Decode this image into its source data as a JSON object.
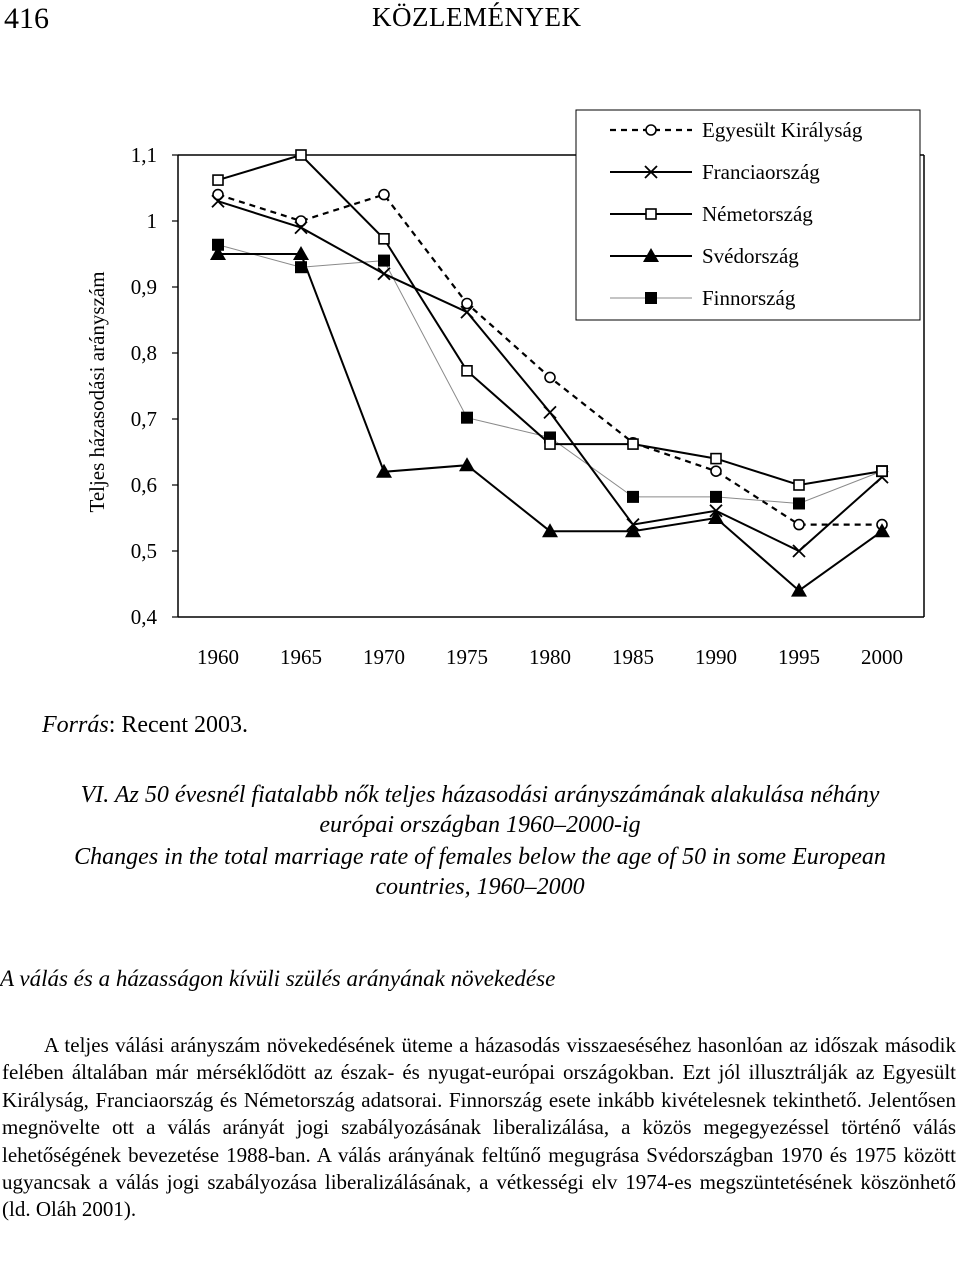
{
  "header": {
    "page_number": "416",
    "running_head": "KÖZLEMÉNYEK"
  },
  "chart_data": {
    "type": "line",
    "ylabel": "Teljes házasodási arányszám",
    "xlabel": "",
    "x": [
      1960,
      1965,
      1970,
      1975,
      1980,
      1985,
      1990,
      1995,
      2000
    ],
    "xtick_labels": [
      "1960",
      "1965",
      "1970",
      "1975",
      "1980",
      "1985",
      "1990",
      "1995",
      "2000"
    ],
    "ylim": [
      0.4,
      1.1
    ],
    "yticks": [
      0.4,
      0.5,
      0.6,
      0.7,
      0.8,
      0.9,
      1.0,
      1.1
    ],
    "ytick_labels": [
      "0,4",
      "0,5",
      "0,6",
      "0,7",
      "0,8",
      "0,9",
      "1",
      "1,1"
    ],
    "grid": false,
    "legend_position": "top-right",
    "series": [
      {
        "name": "Egyesült Királyság",
        "marker": "circle-open",
        "line": "dashed",
        "values": [
          1.04,
          1.0,
          1.04,
          0.875,
          0.763,
          0.664,
          0.621,
          0.54,
          0.54
        ]
      },
      {
        "name": "Franciaország",
        "marker": "x",
        "line": "solid",
        "values": [
          1.03,
          0.99,
          0.92,
          0.862,
          0.71,
          0.54,
          0.561,
          0.5,
          0.612
        ]
      },
      {
        "name": "Németország",
        "marker": "square-open",
        "line": "solid",
        "values": [
          1.062,
          1.1,
          0.973,
          0.773,
          0.662,
          0.662,
          0.64,
          0.6,
          0.621
        ]
      },
      {
        "name": "Svédország",
        "marker": "triangle-filled",
        "line": "solid",
        "values": [
          0.95,
          0.95,
          0.62,
          0.63,
          0.53,
          0.53,
          0.55,
          0.44,
          0.53
        ]
      },
      {
        "name": "Finnország",
        "marker": "square-filled",
        "line": "thin",
        "values": [
          0.964,
          0.93,
          0.94,
          0.702,
          0.672,
          0.582,
          0.582,
          0.572,
          0.621
        ]
      }
    ],
    "colors": {
      "lines": "#000000",
      "thin_line": "#8a8a8a"
    }
  },
  "source": {
    "label": "Forrás",
    "text": ": Recent 2003."
  },
  "caption": {
    "line1": "VI. Az 50 évesnél fiatalabb nők teljes házasodási arányszámának alakulása néhány",
    "line2": "európai országban 1960–2000-ig",
    "line3": "Changes in the total marriage rate of females below the age of 50 in some European",
    "line4": "countries, 1960–2000"
  },
  "section_heading": "A válás és a házasságon kívüli szülés arányának növekedése",
  "body": {
    "paragraph": "A teljes válási arányszám növekedésének üteme a házasodás visszaeséséhez hasonlóan az időszak második felében általában már mérséklődött az észak- és nyugat-európai országokban. Ezt jól illusztrálják az Egyesült Királyság, Franciaország és Németország adatsorai. Finnország esete inkább kivételesnek tekinthető. Jelentősen megnövelte ott a válás arányát jogi szabályozásának liberalizálása, a közös megegyezéssel történő válás lehetőségének bevezetése 1988-ban. A válás arányának feltűnő megugrása Svédországban 1970 és 1975 között ugyancsak a válás jogi szabályozása liberalizálásának, a vétkességi elv 1974-es megszüntetésének köszönhető (ld. Oláh 2001)."
  }
}
